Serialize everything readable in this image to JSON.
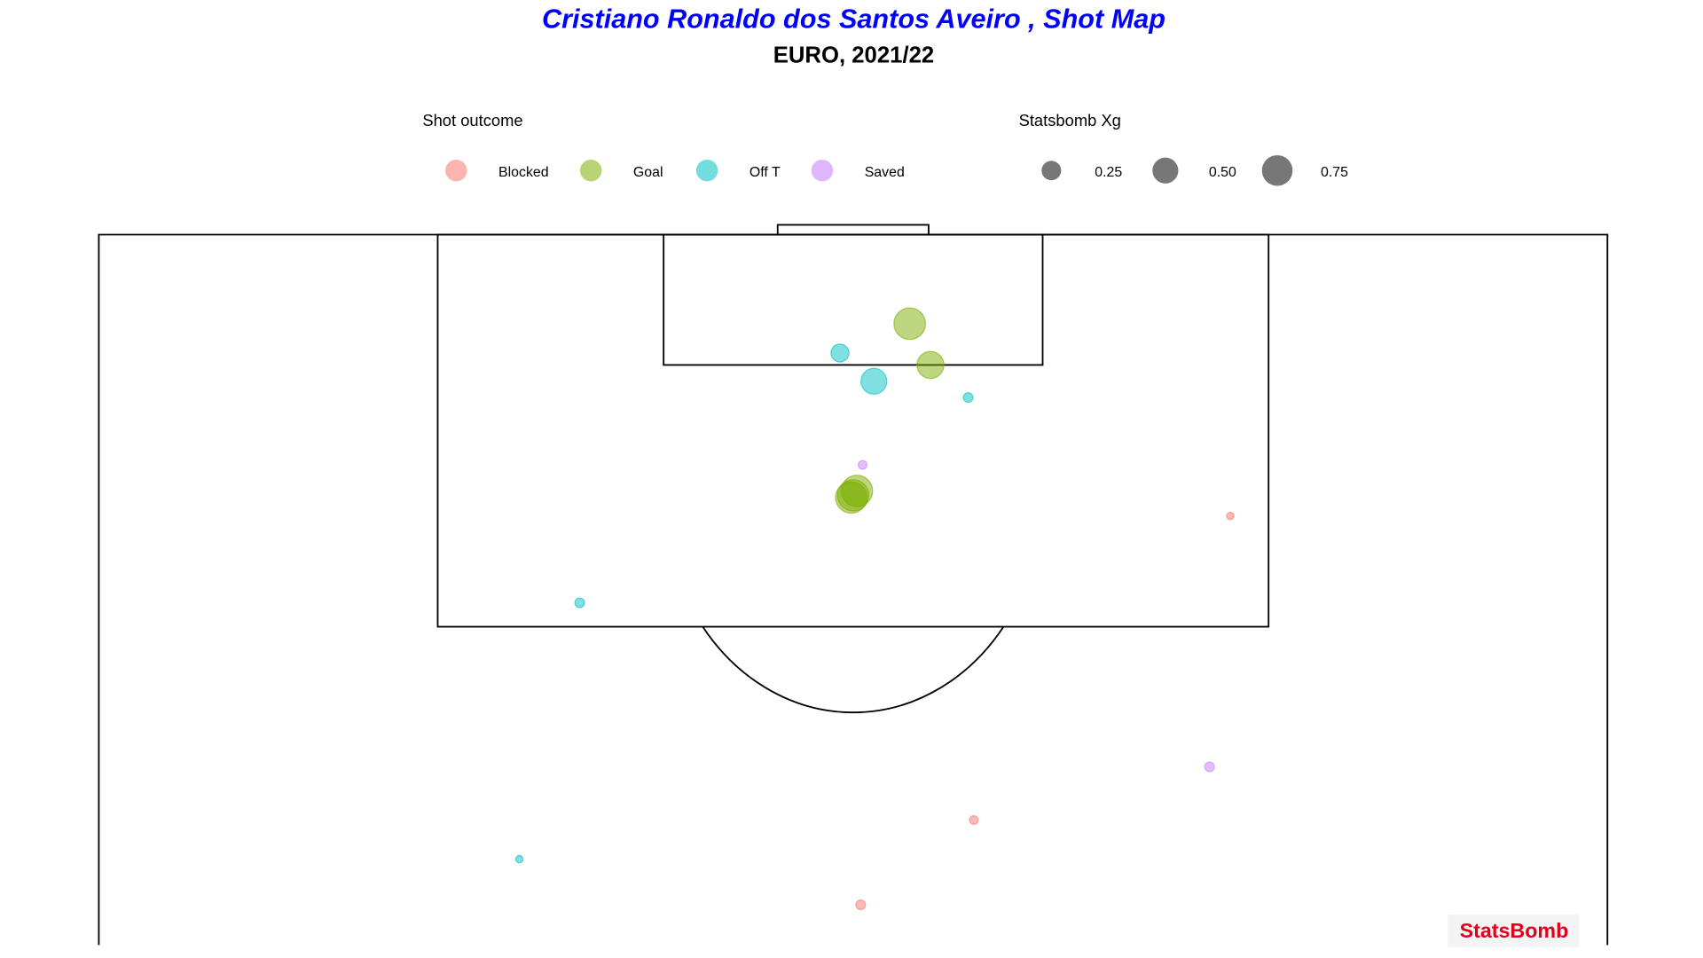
{
  "chart_data": {
    "type": "scatter",
    "title": "Cristiano Ronaldo dos Santos Aveiro , Shot Map",
    "subtitle": "EURO, 2021/22",
    "color_legend_title": "Shot outcome",
    "size_legend_title": "Statsbomb Xg",
    "size_ticks": [
      0.25,
      {
        "value": 0.5,
        "label": "0.50"
      },
      0.75
    ],
    "size_color": "#555555",
    "source": "StatsBomb",
    "xlim": [
      0,
      80
    ],
    "ylim": [
      87.3,
      120
    ],
    "series": [
      {
        "name": "Blocked",
        "color": "#F8766D",
        "x": [
          60.0,
          46.4,
          40.4
        ],
        "y": [
          107.05,
          93.05,
          89.15
        ],
        "sizes": [
          0.01,
          0.02,
          0.03
        ]
      },
      {
        "name": "Goal",
        "color": "#7CAE00",
        "x": [
          43.0,
          44.1,
          40.2,
          39.9,
          40.0
        ],
        "y": [
          115.9,
          114.0,
          108.2,
          107.9,
          108.0
        ],
        "sizes": [
          0.8,
          0.55,
          0.79,
          0.79,
          0.79
        ]
      },
      {
        "name": "Off T",
        "color": "#00BFC4",
        "x": [
          39.3,
          41.1,
          46.1,
          25.5,
          22.3
        ],
        "y": [
          114.55,
          113.25,
          112.5,
          103.05,
          91.25
        ],
        "sizes": [
          0.2,
          0.5,
          0.03,
          0.03,
          0.01
        ]
      },
      {
        "name": "Saved",
        "color": "#C77CFF",
        "x": [
          40.5,
          58.9
        ],
        "y": [
          109.4,
          95.5
        ],
        "sizes": [
          0.02,
          0.03
        ]
      }
    ]
  }
}
